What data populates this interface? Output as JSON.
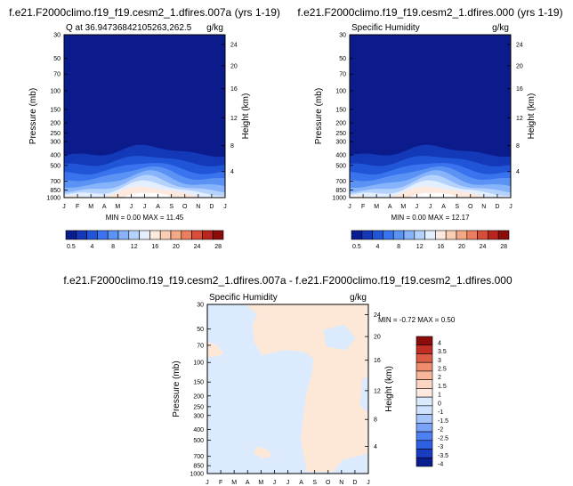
{
  "colors": {
    "levels": [
      "#0a1d8f",
      "#1338b8",
      "#1f55d6",
      "#3a73ee",
      "#5b93f5",
      "#86b3fa",
      "#b5d2fc",
      "#e3eefe",
      "#fde9de",
      "#f9cdb4",
      "#f4a886",
      "#ec7d5d",
      "#d94c38",
      "#b9261d",
      "#8c0c0c"
    ],
    "diff": [
      "#0a1d8f",
      "#1a3cc0",
      "#2f5fe3",
      "#4f80f3",
      "#7aa3f8",
      "#a7c4fb",
      "#d0e2fd",
      "#dbeafd",
      "#fde9de",
      "#fcd6c2",
      "#f7b699",
      "#ee8c6d",
      "#dd5c45",
      "#c12f24",
      "#8c0c0c"
    ],
    "panel_bg": "#0b1b8c",
    "diff_bg": "#dceafd",
    "diff_pos": "#fde8d8"
  },
  "panels": [
    {
      "title": "f.e21.F2000climo.f19_f19.cesm2_1.dfires.007a (yrs 1-19)",
      "left_label": "Q at 36.94736842105263,262.5",
      "units": "g/kg",
      "ylabel": "Pressure (mb)",
      "ylabel_right": "Height (km)",
      "minmax": "MIN =   0.00 MAX =  11.45"
    },
    {
      "title": "f.e21.F2000climo.f19_f19.cesm2_1.dfires.000 (yrs 1-19)",
      "left_label": "Specific Humidity",
      "units": "g/kg",
      "ylabel": "Pressure (mb)",
      "ylabel_right": "Height (km)",
      "minmax": "MIN =   0.00 MAX =  12.17"
    },
    {
      "title": "f.e21.F2000climo.f19_f19.cesm2_1.dfires.007a - f.e21.F2000climo.f19_f19.cesm2_1.dfires.000",
      "left_label": "Specific Humidity",
      "units": "g/kg",
      "ylabel": "Pressure (mb)",
      "ylabel_right": "Height (km)",
      "minmax": "MIN =  -0.72 MAX =   0.50"
    }
  ],
  "chart_data": {
    "type": "heatmap",
    "x": [
      "J",
      "F",
      "M",
      "A",
      "M",
      "J",
      "J",
      "A",
      "S",
      "O",
      "N",
      "D",
      "J"
    ],
    "y_ticks": [
      "30",
      "50",
      "70",
      "100",
      "150",
      "200",
      "250",
      "300",
      "400",
      "500",
      "700",
      "850",
      "1000"
    ],
    "y_right_ticks": [
      "24",
      "20",
      "16",
      "12",
      "8",
      "4"
    ],
    "colorbar_labels": [
      "0.5",
      "4",
      "8",
      "12",
      "16",
      "20",
      "24",
      "28"
    ],
    "diff_colorbar_labels": [
      "4",
      "3.5",
      "3",
      "2.5",
      "2",
      "1.5",
      "1",
      "0",
      "-1",
      "-1.5",
      "-2",
      "-2.5",
      "-3",
      "-3.5",
      "-4"
    ]
  }
}
